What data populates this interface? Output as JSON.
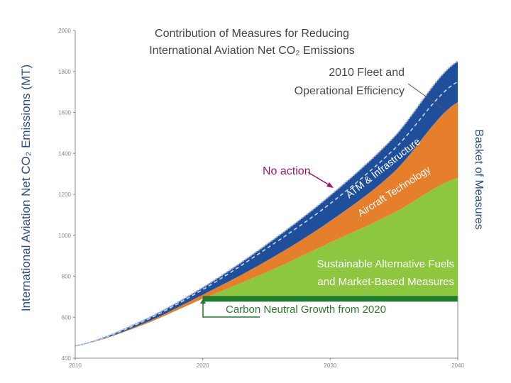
{
  "chart_data": {
    "type": "area",
    "title_line1": "Contribution of Measures for Reducing",
    "title_line2": "International Aviation Net CO₂ Emissions",
    "ylabel": "International Aviation Net CO₂ Emissions (MT)",
    "xlim": [
      2010,
      2040
    ],
    "ylim": [
      400,
      2000
    ],
    "x_ticks": [
      2010,
      2020,
      2030,
      2040
    ],
    "y_ticks": [
      400,
      600,
      800,
      1000,
      1200,
      1400,
      1600,
      1800,
      2000
    ],
    "x": [
      2010,
      2015,
      2020,
      2025,
      2030,
      2035,
      2040
    ],
    "series": [
      {
        "name": "No action",
        "values": [
          460,
          575,
          745,
          955,
          1195,
          1480,
          1850
        ]
      },
      {
        "name": "2010 Fleet and Operational Efficiency",
        "values": [
          460,
          570,
          735,
          935,
          1155,
          1420,
          1750
        ]
      },
      {
        "name": "ATM & Infrastructure",
        "values": [
          460,
          560,
          710,
          875,
          1070,
          1310,
          1650
        ]
      },
      {
        "name": "Aircraft Technology",
        "values": [
          460,
          555,
          690,
          820,
          965,
          1110,
          1280
        ]
      },
      {
        "name": "Carbon Neutral Growth from 2020",
        "values": [
          null,
          null,
          690,
          690,
          690,
          690,
          690
        ]
      }
    ],
    "colors": {
      "atm": "#1f4f9a",
      "aircraft": "#e67f2c",
      "fuels": "#8dc63f",
      "cng": "#1f7a2e",
      "dotted": "#9fb7d8",
      "noaction": "#a0166a",
      "axis": "#888888"
    },
    "annotations": {
      "fleet_line1": "2010 Fleet and",
      "fleet_line2": "Operational Efficiency",
      "no_action": "No action",
      "atm": "ATM & Infrastructure",
      "aircraft": "Aircraft Technology",
      "fuels_line1": "Sustainable Alternative Fuels",
      "fuels_line2": "and Market-Based Measures",
      "cng": "Carbon Neutral Growth from 2020",
      "basket": "Basket of Measures"
    }
  }
}
